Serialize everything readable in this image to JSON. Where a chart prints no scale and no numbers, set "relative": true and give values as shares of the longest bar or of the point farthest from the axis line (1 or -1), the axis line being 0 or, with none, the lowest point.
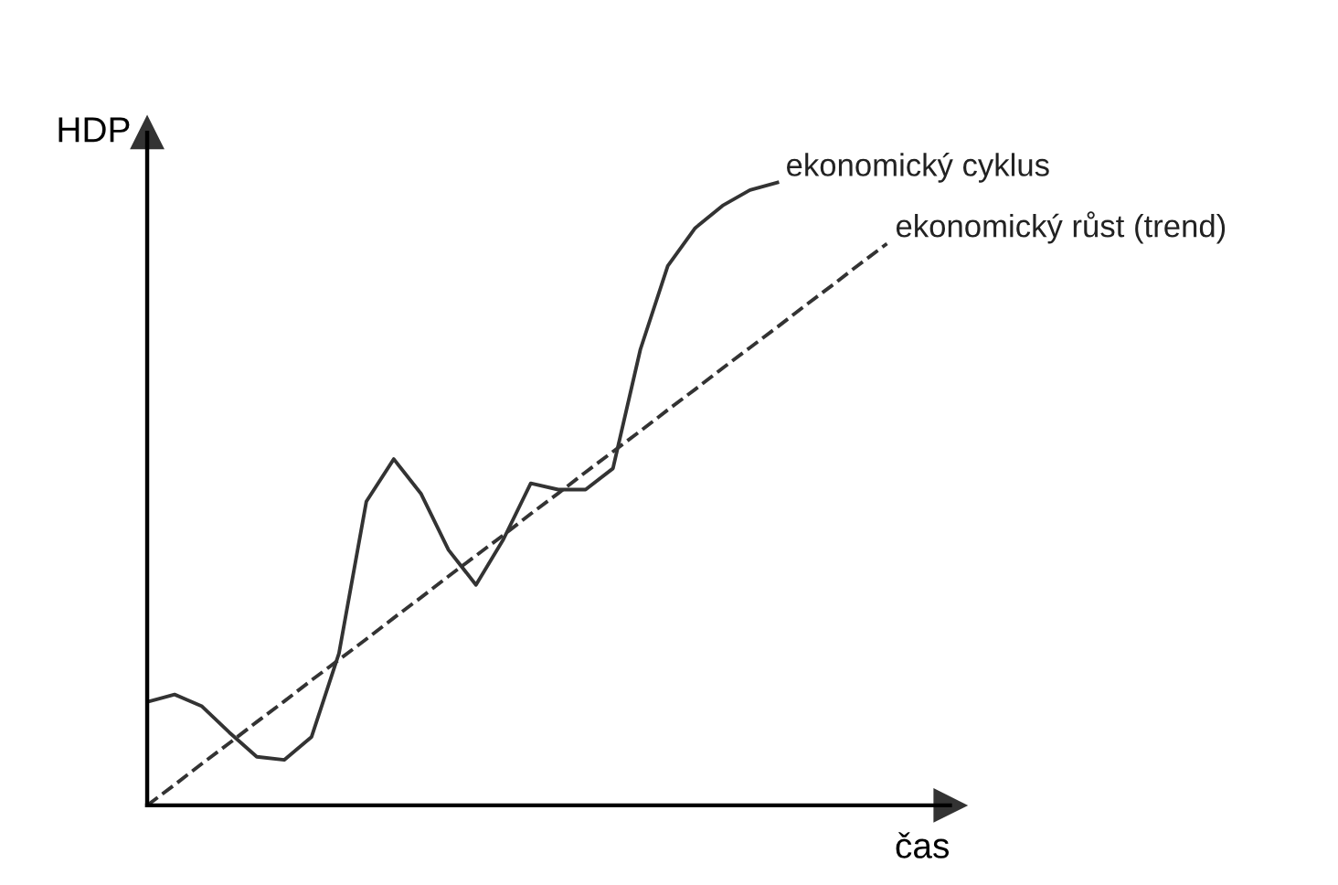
{
  "chart_data": {
    "type": "line",
    "relative": true,
    "xlabel": "čas",
    "ylabel": "HDP",
    "legend": false,
    "marker": "none",
    "categories": [
      null,
      null,
      null,
      null,
      null,
      null,
      null,
      null,
      null,
      null,
      null,
      null,
      null,
      null,
      null,
      null,
      null,
      null,
      null,
      null,
      null,
      null,
      null,
      null,
      null,
      null,
      null,
      null
    ],
    "series": [
      {
        "name": "ekonomický cyklus",
        "color": "#333333",
        "line_style": "solid",
        "values": [
          0.166,
          0.178,
          0.159,
          0.117,
          0.078,
          0.073,
          0.11,
          0.244,
          0.488,
          0.556,
          0.5,
          0.41,
          0.354,
          0.427,
          0.517,
          0.507,
          0.507,
          0.541,
          0.732,
          0.866,
          0.927,
          0.963,
          0.988,
          1.0,
          null,
          null,
          null,
          null
        ]
      },
      {
        "name": "ekonomický růst (trend)",
        "color": "#333333",
        "line_style": "dashed",
        "values": [
          0,
          0.033,
          0.067,
          0.1,
          0.134,
          0.167,
          0.201,
          0.234,
          0.267,
          0.301,
          0.334,
          0.368,
          0.401,
          0.434,
          0.468,
          0.501,
          0.535,
          0.568,
          0.601,
          0.635,
          0.668,
          0.702,
          0.735,
          0.768,
          0.802,
          0.835,
          0.869,
          0.902
        ]
      }
    ]
  }
}
